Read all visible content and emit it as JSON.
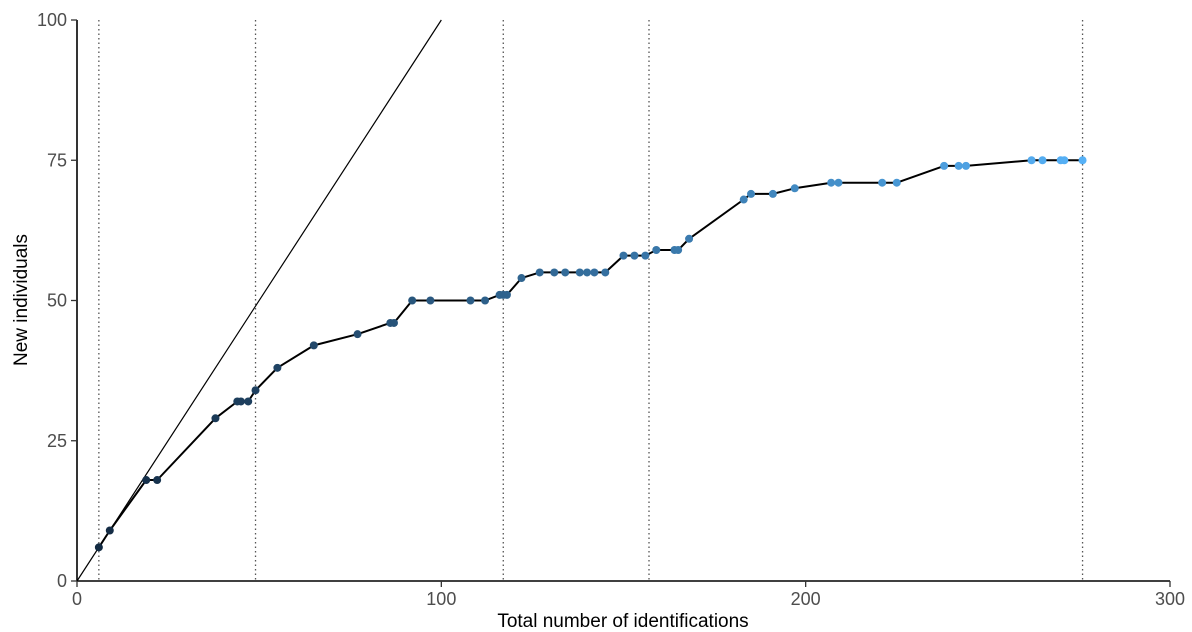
{
  "chart_data": {
    "type": "line",
    "title": "",
    "xlabel": "Total number of identifications",
    "ylabel": "New individuals",
    "xlim": [
      0,
      300
    ],
    "ylim": [
      0,
      100
    ],
    "x_ticks": [
      0,
      100,
      200,
      300
    ],
    "y_ticks": [
      0,
      25,
      50,
      75,
      100
    ],
    "x_tick_labels": [
      "0",
      "100",
      "200",
      "300"
    ],
    "y_tick_labels": [
      "0",
      "25",
      "50",
      "75",
      "100"
    ],
    "grid": false,
    "legend": "none",
    "colors": {
      "line": "#000000",
      "point_start": "#132b43",
      "point_end": "#56b1f7",
      "reference_line": "#000000",
      "vline": "#555555"
    },
    "reference_line": {
      "slope": 1,
      "intercept": 0
    },
    "vlines": [
      6,
      49,
      117,
      157,
      276
    ],
    "series": [
      {
        "x": [
          6,
          9,
          19,
          22,
          38,
          44,
          45,
          47,
          49,
          55,
          65,
          77,
          86,
          87,
          92,
          97,
          108,
          112,
          116,
          117,
          118,
          122,
          127,
          131,
          134,
          138,
          140,
          142,
          145,
          150,
          153,
          156,
          159,
          164,
          165,
          168,
          183,
          185,
          191,
          197,
          207,
          209,
          221,
          225,
          238,
          242,
          244,
          262,
          265,
          270,
          271,
          276
        ],
        "y": [
          6,
          9,
          18,
          18,
          29,
          32,
          32,
          32,
          34,
          38,
          42,
          44,
          46,
          46,
          50,
          50,
          50,
          50,
          51,
          51,
          51,
          54,
          55,
          55,
          55,
          55,
          55,
          55,
          55,
          58,
          58,
          58,
          59,
          59,
          59,
          61,
          68,
          69,
          69,
          70,
          71,
          71,
          71,
          71,
          74,
          74,
          74,
          75,
          75,
          75,
          75,
          75
        ]
      }
    ]
  }
}
